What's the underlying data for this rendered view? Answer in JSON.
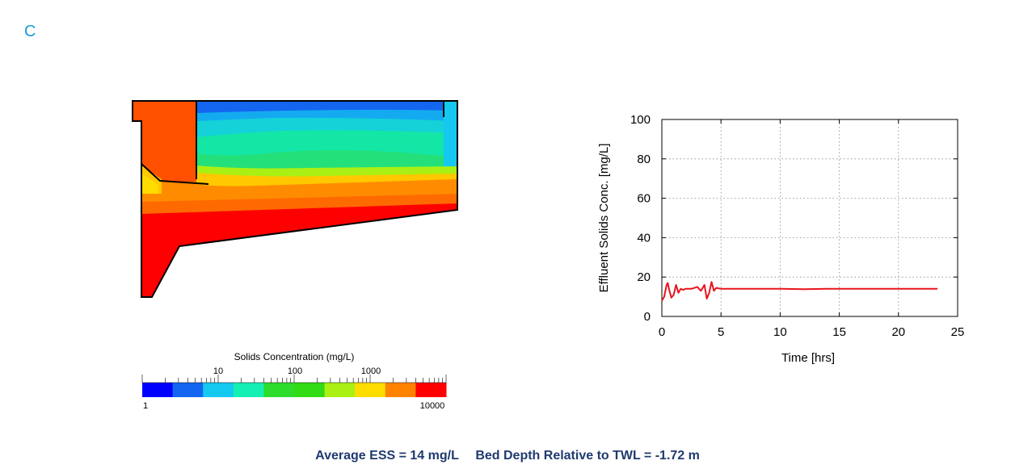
{
  "panel_letter": "C",
  "colors": {
    "letter": "#1a9bd7",
    "summary": "#1f3a6e",
    "series": "#e8141b",
    "colormap": [
      "#0000ff",
      "#1466f0",
      "#14c8f0",
      "#14f0b4",
      "#2ddc2d",
      "#32dc14",
      "#aaf014",
      "#ffdc00",
      "#ff8200",
      "#ff0000"
    ]
  },
  "colorbar": {
    "title": "Solids Concentration (mg/L)",
    "top_labels": [
      "10",
      "100",
      "1000"
    ],
    "bottom_labels": [
      "1",
      "10000"
    ],
    "scale": "log",
    "min": 1,
    "max": 10000
  },
  "chart_data": {
    "type": "line",
    "xlabel": "Time [hrs]",
    "ylabel": "Effluent Solids Conc. [mg/L]",
    "xlim": [
      0,
      25
    ],
    "ylim": [
      0,
      100
    ],
    "xticks": [
      "0",
      "5",
      "10",
      "15",
      "20",
      "25"
    ],
    "yticks": [
      "0",
      "20",
      "40",
      "60",
      "80",
      "100"
    ],
    "grid": true,
    "series": [
      {
        "x": [
          0,
          0.2,
          0.4,
          0.5,
          0.6,
          0.8,
          1.0,
          1.2,
          1.4,
          1.6,
          1.8,
          2.0,
          2.5,
          3.0,
          3.3,
          3.6,
          3.8,
          4.0,
          4.2,
          4.4,
          4.6,
          5,
          6,
          8,
          10,
          12,
          14,
          16,
          18,
          20,
          22,
          23.3
        ],
        "y": [
          8,
          10,
          16,
          17,
          14,
          9.5,
          11,
          16,
          12,
          14,
          13.5,
          14,
          14,
          15,
          13,
          16,
          9,
          12,
          17.5,
          13,
          14.5,
          14,
          14,
          14,
          14,
          13.8,
          14,
          14,
          14,
          14,
          14,
          14
        ]
      }
    ]
  },
  "summary": {
    "ess": "Average ESS = 14 mg/L",
    "bed_depth": "Bed Depth Relative to TWL = -1.72 m"
  }
}
